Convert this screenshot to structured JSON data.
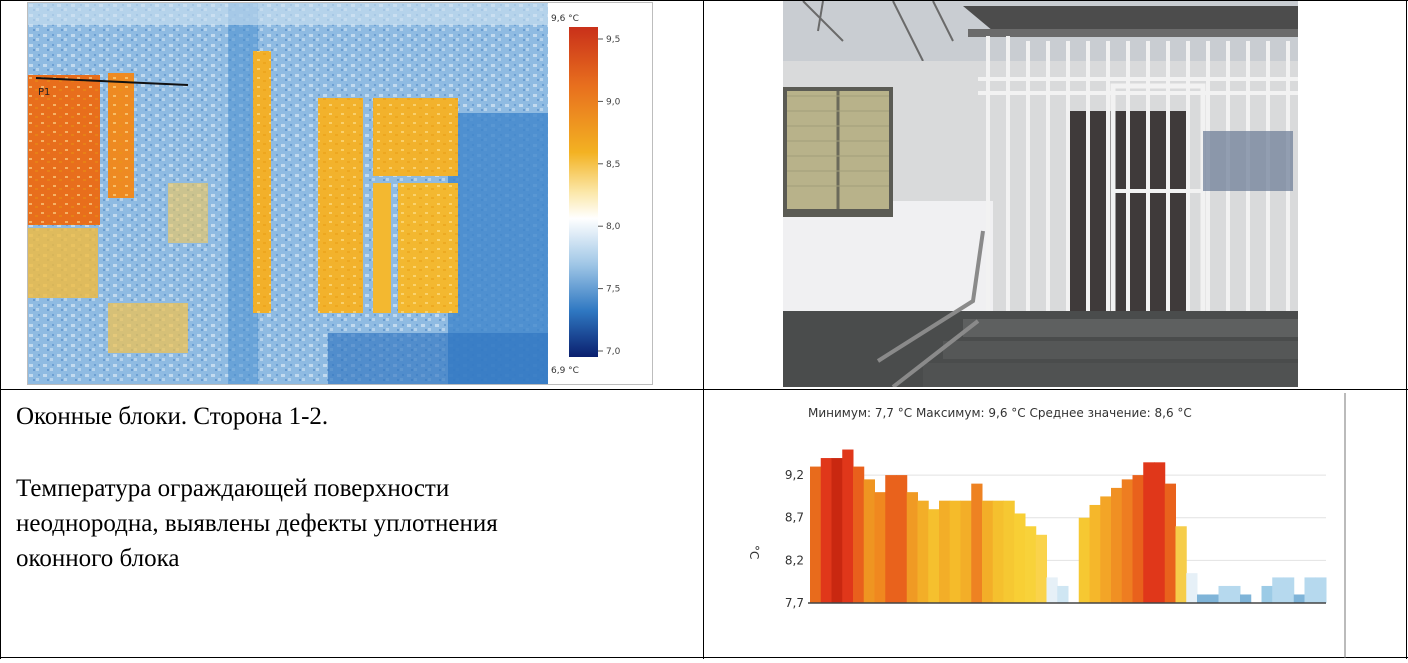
{
  "thermal_image": {
    "scale_max_label": "9,6 °C",
    "scale_min_label": "6,9 °C",
    "scale_ticks": [
      "9,5",
      "9,0",
      "8,5",
      "8,0",
      "7,5",
      "7,0"
    ],
    "marker_label": "P1",
    "palette": {
      "hot": "#d9441a",
      "warm": "#f5b520",
      "neutral": "#f5f0e8",
      "cool": "#6fa6d8",
      "cold": "#0b2f8a"
    }
  },
  "caption": {
    "title": "Оконные блоки. Сторона 1-2.",
    "description_lines": [
      "Температура ограждающей поверхности",
      "неоднородна, выявлены дефекты уплотнения",
      "оконного блока"
    ]
  },
  "chart_data": {
    "type": "bar",
    "summary": "Минимум: 7,7 °C Максимум: 9,6 °C Среднее значение: 8,6 °C",
    "ylabel": "°C",
    "yticks": [
      "9,2",
      "8,7",
      "8,2",
      "7,7"
    ],
    "ylim": [
      7.7,
      9.6
    ],
    "grid": true,
    "values": [
      9.3,
      9.4,
      9.4,
      9.5,
      9.3,
      9.15,
      9.0,
      9.2,
      9.2,
      9.0,
      8.9,
      8.8,
      8.9,
      8.9,
      8.9,
      9.1,
      8.9,
      8.9,
      8.9,
      8.75,
      8.6,
      8.5,
      8.0,
      7.9,
      7.7,
      8.7,
      8.85,
      8.95,
      9.05,
      9.15,
      9.2,
      9.35,
      9.35,
      9.1,
      8.6,
      8.05,
      7.8,
      7.8,
      7.9,
      7.9,
      7.8,
      7.7,
      7.9,
      8.0,
      8.0,
      7.8,
      8.0,
      8.0
    ],
    "colors": [
      "#e86b1c",
      "#e0371a",
      "#c92810",
      "#e0371a",
      "#e9601c",
      "#ef9521",
      "#f0881f",
      "#e9621c",
      "#e9621c",
      "#f09a24",
      "#f3ae28",
      "#f5c02e",
      "#f3ae28",
      "#f5bb2a",
      "#f3ae28",
      "#ee8222",
      "#f3ae28",
      "#f5c02e",
      "#f6c832",
      "#f8cf35",
      "#f8d23a",
      "#fad34b",
      "#e6f0f7",
      "#cfe6f3",
      "#ffffff",
      "#f6c832",
      "#f5b72b",
      "#f3a527",
      "#f09023",
      "#ee7d21",
      "#e9611c",
      "#e0371a",
      "#e0371a",
      "#e9621c",
      "#f6cd4a",
      "#e6f0f7",
      "#7fb4d8",
      "#7fb4d8",
      "#b6d9ee",
      "#b6d9ee",
      "#7fb4d8",
      "#ffffff",
      "#9ccbe6",
      "#b6d9ee",
      "#b6d9ee",
      "#7fb4d8",
      "#b6d9ee",
      "#b6d9ee"
    ]
  }
}
